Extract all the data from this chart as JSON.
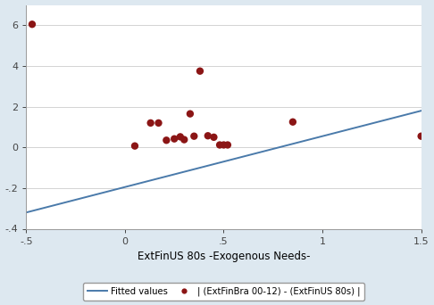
{
  "scatter_x": [
    -0.47,
    0.05,
    0.13,
    0.17,
    0.21,
    0.25,
    0.28,
    0.3,
    0.33,
    0.35,
    0.38,
    0.42,
    0.45,
    0.48,
    0.5,
    0.52,
    0.85,
    1.5
  ],
  "scatter_y": [
    6.05,
    0.07,
    1.2,
    1.2,
    0.35,
    0.42,
    0.52,
    0.38,
    1.65,
    0.55,
    3.75,
    0.57,
    0.5,
    0.12,
    0.12,
    0.12,
    1.25,
    0.55
  ],
  "fit_x": [
    -0.5,
    1.5
  ],
  "fit_y": [
    -3.2,
    1.8
  ],
  "line_color": "#4a7aaa",
  "dot_color": "#8B1515",
  "bg_color": "#dde8f0",
  "plot_bg": "#ffffff",
  "xlabel": "ExtFinUS 80s -Exogenous Needs-",
  "xlim": [
    -0.5,
    1.5
  ],
  "ylim": [
    -4,
    7
  ],
  "xticks": [
    -0.5,
    0,
    0.5,
    1,
    1.5
  ],
  "yticks": [
    -4,
    -2,
    0,
    2,
    4,
    6
  ],
  "xtick_labels": [
    "-.5",
    "0",
    ".5",
    "1",
    "1.5"
  ],
  "ytick_labels": [
    "-4",
    "-2",
    "0",
    "2",
    "4",
    "6"
  ],
  "legend_line_label": "Fitted values",
  "legend_dot_label": "| (ExtFinBra 00-12) - (ExtFinUS 80s) |",
  "marker_size": 6
}
